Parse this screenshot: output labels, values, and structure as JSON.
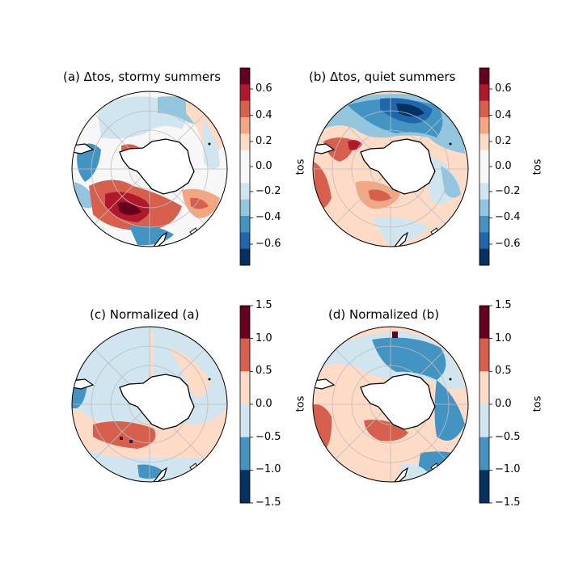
{
  "panels": [
    {
      "id": "a",
      "title": "(a) Δtos, stormy summers",
      "cbar_label": "tos",
      "cbar_ticks": [
        "0.6",
        "0.4",
        "0.2",
        "0.0",
        "−0.2",
        "−0.4",
        "−0.6"
      ],
      "cbar_colors": [
        "#67001f",
        "#b2182b",
        "#d6604d",
        "#f4a582",
        "#fddbc7",
        "#f7f7f7",
        "#f7f7f7",
        "#d1e5f0",
        "#92c5de",
        "#4393c3",
        "#2166ac",
        "#053061"
      ]
    },
    {
      "id": "b",
      "title": "(b) Δtos, quiet summers",
      "cbar_label": "tos",
      "cbar_ticks": [
        "0.6",
        "0.4",
        "0.2",
        "0.0",
        "−0.2",
        "−0.4",
        "−0.6"
      ],
      "cbar_colors": [
        "#67001f",
        "#b2182b",
        "#d6604d",
        "#f4a582",
        "#fddbc7",
        "#f7f7f7",
        "#f7f7f7",
        "#d1e5f0",
        "#92c5de",
        "#4393c3",
        "#2166ac",
        "#053061"
      ]
    },
    {
      "id": "c",
      "title": "(c) Normalized (a)",
      "cbar_label": "tos",
      "cbar_ticks": [
        "1.5",
        "1.0",
        "0.5",
        "0.0",
        "−0.5",
        "−1.0",
        "−1.5"
      ],
      "cbar_colors": [
        "#67001f",
        "#d6604d",
        "#fddbc7",
        "#d1e5f0",
        "#4393c3",
        "#053061"
      ]
    },
    {
      "id": "d",
      "title": "(d) Normalized (b)",
      "cbar_label": "tos",
      "cbar_ticks": [
        "1.5",
        "1.0",
        "0.5",
        "0.0",
        "−0.5",
        "−1.0",
        "−1.5"
      ],
      "cbar_colors": [
        "#67001f",
        "#d6604d",
        "#fddbc7",
        "#d1e5f0",
        "#4393c3",
        "#053061"
      ]
    }
  ]
}
